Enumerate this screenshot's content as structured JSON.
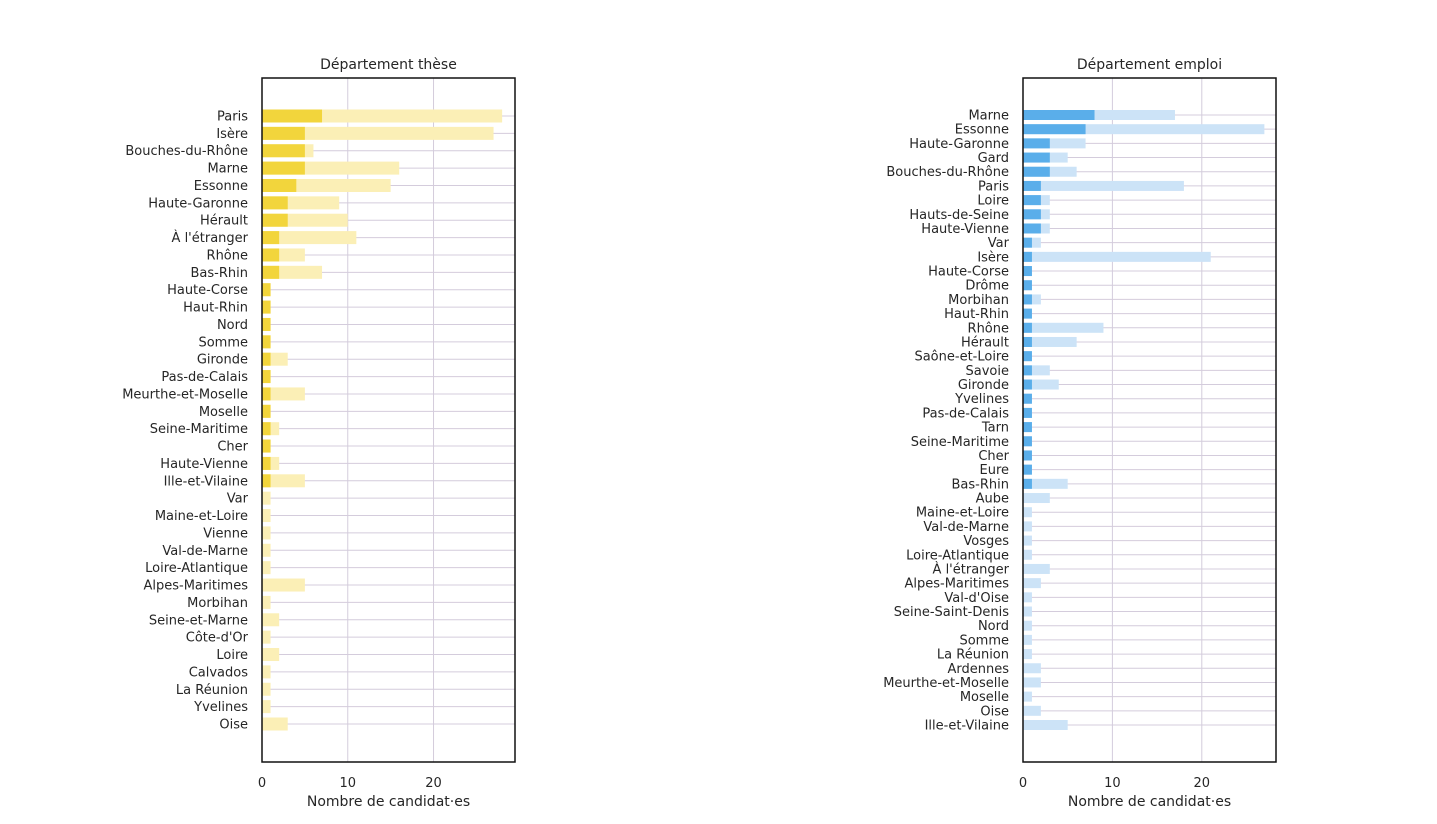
{
  "colors": {
    "thesis_primary": "#f2d53c",
    "thesis_secondary": "#fbefb6",
    "job_primary": "#5aaeea",
    "job_secondary": "#cce3f7",
    "grid": "#d4ccdc",
    "axis": "#111111",
    "text": "#262626"
  },
  "chart_data": [
    {
      "type": "bar",
      "orientation": "horizontal",
      "title": "Département thèse",
      "xlabel": "Nombre de candidat·es",
      "ylabel": "",
      "xlim": [
        0,
        29.5
      ],
      "xticks": [
        0,
        10,
        20
      ],
      "grid": true,
      "color_key": "thesis",
      "categories": [
        "Paris",
        "Isère",
        "Bouches-du-Rhône",
        "Marne",
        "Essonne",
        "Haute-Garonne",
        "Hérault",
        "À l'étranger",
        "Rhône",
        "Bas-Rhin",
        "Haute-Corse",
        "Haut-Rhin",
        "Nord",
        "Somme",
        "Gironde",
        "Pas-de-Calais",
        "Meurthe-et-Moselle",
        "Moselle",
        "Seine-Maritime",
        "Cher",
        "Haute-Vienne",
        "Ille-et-Vilaine",
        "Var",
        "Maine-et-Loire",
        "Vienne",
        "Val-de-Marne",
        "Loire-Atlantique",
        "Alpes-Maritimes",
        "Morbihan",
        "Seine-et-Marne",
        "Côte-d'Or",
        "Loire",
        "Calvados",
        "La Réunion",
        "Yvelines",
        "Oise"
      ],
      "series": [
        {
          "name": "secondary",
          "values": [
            28,
            27,
            6,
            16,
            15,
            9,
            10,
            11,
            5,
            7,
            1,
            1,
            1,
            1,
            3,
            1,
            5,
            1,
            2,
            1,
            2,
            5,
            1,
            1,
            1,
            1,
            1,
            5,
            1,
            2,
            1,
            2,
            1,
            1,
            1,
            3
          ]
        },
        {
          "name": "primary",
          "values": [
            7,
            5,
            5,
            5,
            4,
            3,
            3,
            2,
            2,
            2,
            1,
            1,
            1,
            1,
            1,
            1,
            1,
            1,
            1,
            1,
            1,
            1,
            0,
            0,
            0,
            0,
            0,
            0,
            0,
            0,
            0,
            0,
            0,
            0,
            0,
            0
          ]
        }
      ]
    },
    {
      "type": "bar",
      "orientation": "horizontal",
      "title": "Département emploi",
      "xlabel": "Nombre de candidat·es",
      "ylabel": "",
      "xlim": [
        0,
        28.3
      ],
      "xticks": [
        0,
        10,
        20
      ],
      "grid": true,
      "color_key": "job",
      "categories": [
        "Marne",
        "Essonne",
        "Haute-Garonne",
        "Gard",
        "Bouches-du-Rhône",
        "Paris",
        "Loire",
        "Hauts-de-Seine",
        "Haute-Vienne",
        "Var",
        "Isère",
        "Haute-Corse",
        "Drôme",
        "Morbihan",
        "Haut-Rhin",
        "Rhône",
        "Hérault",
        "Saône-et-Loire",
        "Savoie",
        "Gironde",
        "Yvelines",
        "Pas-de-Calais",
        "Tarn",
        "Seine-Maritime",
        "Cher",
        "Eure",
        "Bas-Rhin",
        "Aube",
        "Maine-et-Loire",
        "Val-de-Marne",
        "Vosges",
        "Loire-Atlantique",
        "À l'étranger",
        "Alpes-Maritimes",
        "Val-d'Oise",
        "Seine-Saint-Denis",
        "Nord",
        "Somme",
        "La Réunion",
        "Ardennes",
        "Meurthe-et-Moselle",
        "Moselle",
        "Oise",
        "Ille-et-Vilaine"
      ],
      "series": [
        {
          "name": "secondary",
          "values": [
            17,
            27,
            7,
            5,
            6,
            18,
            3,
            3,
            3,
            2,
            21,
            1,
            1,
            2,
            1,
            9,
            6,
            1,
            3,
            4,
            1,
            1,
            1,
            1,
            1,
            1,
            5,
            3,
            1,
            1,
            1,
            1,
            3,
            2,
            1,
            1,
            1,
            1,
            1,
            2,
            2,
            1,
            2,
            5
          ]
        },
        {
          "name": "primary",
          "values": [
            8,
            7,
            3,
            3,
            3,
            2,
            2,
            2,
            2,
            1,
            1,
            1,
            1,
            1,
            1,
            1,
            1,
            1,
            1,
            1,
            1,
            1,
            1,
            1,
            1,
            1,
            1,
            0,
            0,
            0,
            0,
            0,
            0,
            0,
            0,
            0,
            0,
            0,
            0,
            0,
            0,
            0,
            0,
            0
          ]
        }
      ]
    }
  ]
}
